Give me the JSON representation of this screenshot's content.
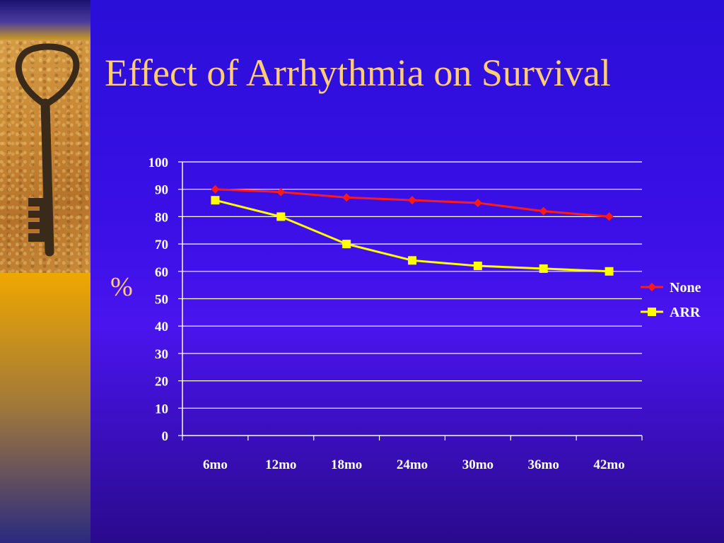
{
  "slide": {
    "title": "Effect of Arrhythmia on Survival"
  },
  "chart_data": {
    "type": "line",
    "title": "",
    "xlabel": "",
    "ylabel": "%",
    "categories": [
      "6mo",
      "12mo",
      "18mo",
      "24mo",
      "30mo",
      "36mo",
      "42mo"
    ],
    "ylim": [
      0,
      100
    ],
    "yticks": [
      0,
      10,
      20,
      30,
      40,
      50,
      60,
      70,
      80,
      90,
      100
    ],
    "grid": true,
    "legend_position": "right",
    "series": [
      {
        "name": "None",
        "values": [
          90,
          89,
          87,
          86,
          85,
          82,
          80
        ],
        "color": "#ff1a1a",
        "marker": "diamond"
      },
      {
        "name": "ARR",
        "values": [
          86,
          80,
          70,
          64,
          62,
          61,
          60
        ],
        "color": "#ffff00",
        "marker": "square"
      }
    ]
  },
  "colors": {
    "background": "#3a0fe6",
    "title_text": "#ffcc77",
    "sidebar": "#f0a800"
  },
  "image": {
    "icon": "old-key-icon"
  }
}
